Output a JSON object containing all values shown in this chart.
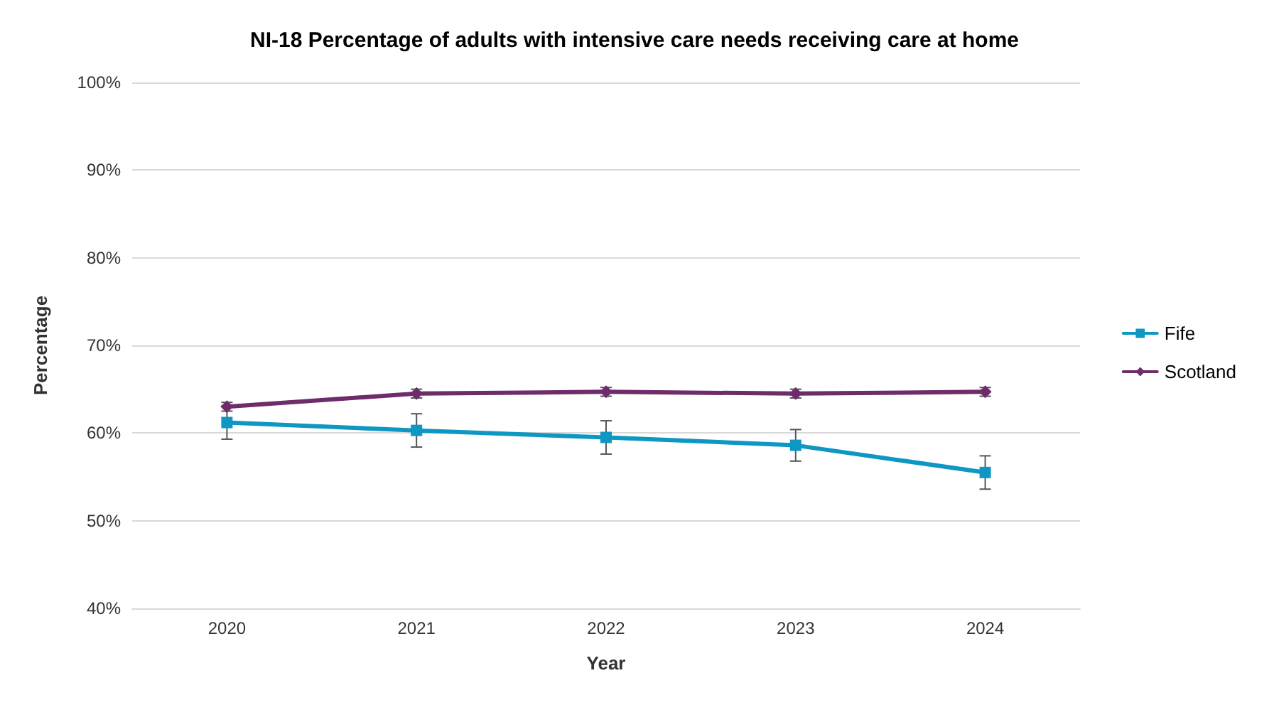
{
  "chart_data": {
    "type": "line",
    "title": "NI-18 Percentage of adults with intensive care needs receiving care at home",
    "xlabel": "Year",
    "ylabel": "Percentage",
    "categories": [
      "2020",
      "2021",
      "2022",
      "2023",
      "2024"
    ],
    "series": [
      {
        "name": "Fife",
        "color": "#0f97c4",
        "marker": "square",
        "values": [
          61.2,
          60.3,
          59.5,
          58.6,
          55.5
        ],
        "errors": [
          1.9,
          1.9,
          1.9,
          1.8,
          1.9
        ]
      },
      {
        "name": "Scotland",
        "color": "#6e2c6b",
        "marker": "diamond",
        "values": [
          63.0,
          64.5,
          64.7,
          64.5,
          64.7
        ],
        "errors": [
          0.5,
          0.5,
          0.5,
          0.5,
          0.5
        ]
      }
    ],
    "ylim": [
      40,
      100
    ],
    "yticks": [
      {
        "value": 40,
        "label": "40%"
      },
      {
        "value": 50,
        "label": "50%"
      },
      {
        "value": 60,
        "label": "60%"
      },
      {
        "value": 70,
        "label": "70%"
      },
      {
        "value": 80,
        "label": "80%"
      },
      {
        "value": 90,
        "label": "90%"
      },
      {
        "value": 100,
        "label": "100%"
      }
    ],
    "grid": "y",
    "legend": "right",
    "line_style": "solid"
  }
}
